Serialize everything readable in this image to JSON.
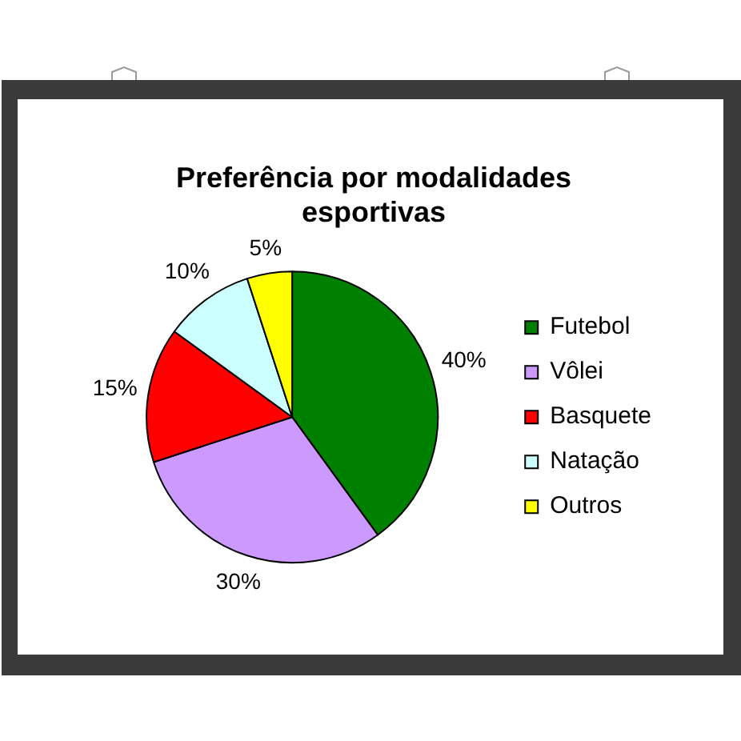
{
  "chart_data": {
    "type": "pie",
    "title": "Preferência por modalidades esportivas",
    "categories": [
      "Futebol",
      "Vôlei",
      "Basquete",
      "Natação",
      "Outros"
    ],
    "values": [
      40,
      30,
      15,
      10,
      5
    ],
    "colors": [
      "#008000",
      "#cc99ff",
      "#ff0000",
      "#ccffff",
      "#ffff00"
    ],
    "value_labels": [
      "40%",
      "30%",
      "15%",
      "10%",
      "5%"
    ],
    "legend": "right"
  }
}
